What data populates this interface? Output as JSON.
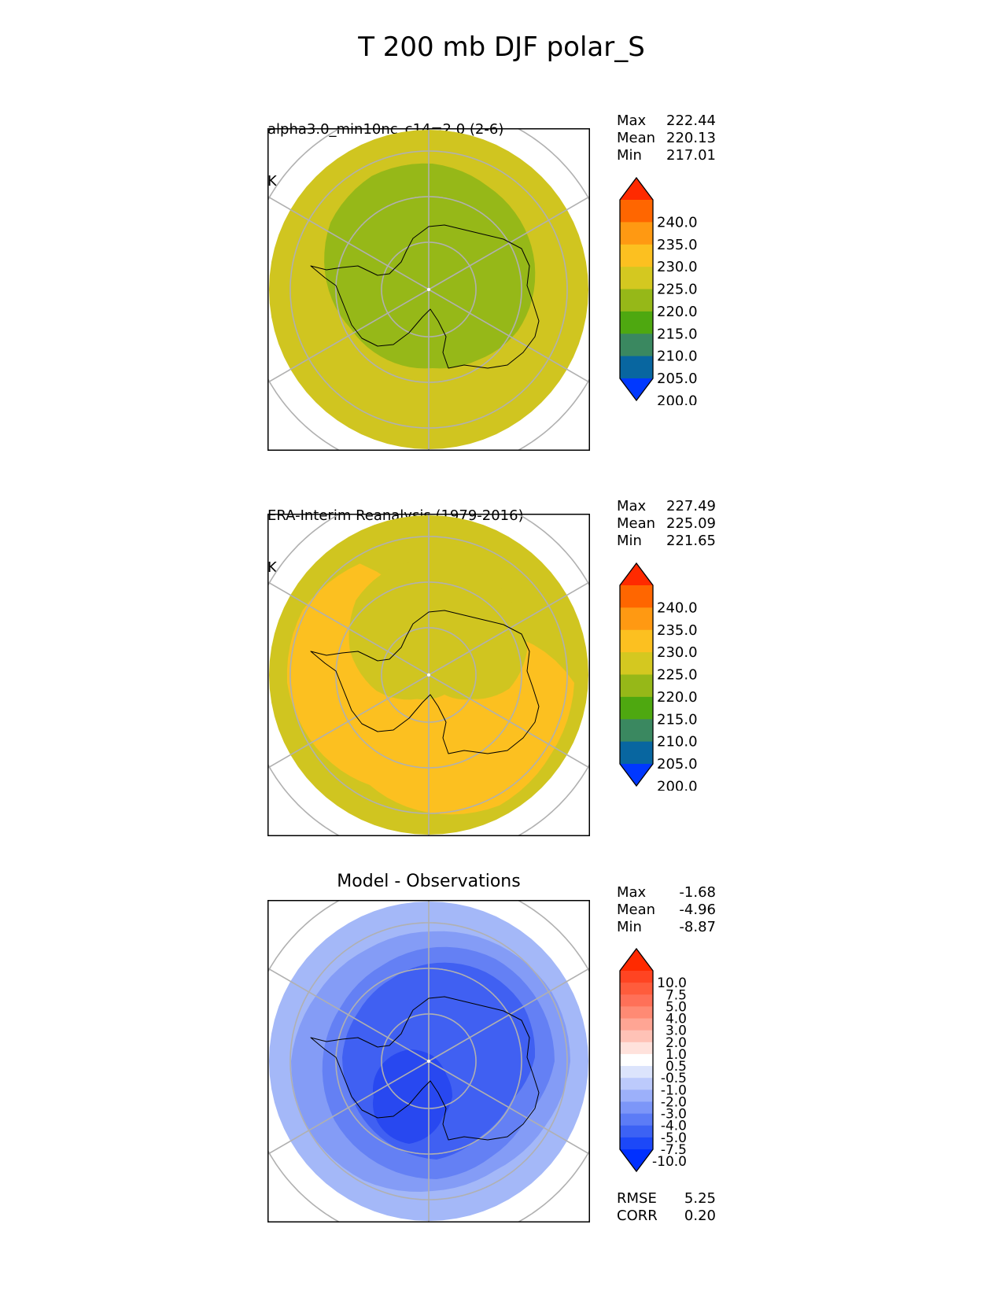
{
  "chart_data": {
    "type": "heatmap",
    "title": "T 200 mb DJF polar_S",
    "panels": [
      {
        "id": "model",
        "title_line1": "alpha3.0_min10nc_c14=2.0 (2-6)",
        "title_line2": "K",
        "stats": [
          {
            "label": "Max",
            "value": "222.44"
          },
          {
            "label": "Mean",
            "value": "220.13"
          },
          {
            "label": "Min",
            "value": "217.01"
          }
        ],
        "colorbar": {
          "ticks": [
            "240.0",
            "235.0",
            "230.0",
            "225.0",
            "220.0",
            "215.0",
            "210.0",
            "205.0",
            "200.0"
          ],
          "colors": [
            "#ff2a00",
            "#ff6600",
            "#ff9912",
            "#fcc020",
            "#d4c820",
            "#96b818",
            "#4ea810",
            "#3a8860",
            "#0866a0",
            "#0038ff"
          ]
        },
        "field_levels": [
          {
            "band": "220-225",
            "color": "#d0c520",
            "region": "outer ring"
          },
          {
            "band": "215-220",
            "color": "#96b818",
            "region": "polar cap over Antarctica"
          }
        ]
      },
      {
        "id": "obs",
        "title_line1": "ERA-Interim Reanalysis (1979-2016)",
        "title_line2": "K",
        "stats": [
          {
            "label": "Max",
            "value": "227.49"
          },
          {
            "label": "Mean",
            "value": "225.09"
          },
          {
            "label": "Min",
            "value": "221.65"
          }
        ],
        "colorbar": {
          "ticks": [
            "240.0",
            "235.0",
            "230.0",
            "225.0",
            "220.0",
            "215.0",
            "210.0",
            "205.0",
            "200.0"
          ],
          "colors": [
            "#ff2a00",
            "#ff6600",
            "#ff9912",
            "#fcc020",
            "#d4c820",
            "#96b818",
            "#4ea810",
            "#3a8860",
            "#0866a0",
            "#0038ff"
          ]
        },
        "field_levels": [
          {
            "band": "220-225",
            "color": "#d0c520",
            "region": "north and outer edge"
          },
          {
            "band": "225-230",
            "color": "#fcc020",
            "region": "southern crescent"
          }
        ]
      },
      {
        "id": "diff",
        "title_line1": "Model - Observations",
        "stats": [
          {
            "label": "Max",
            "value": "-1.68"
          },
          {
            "label": "Mean",
            "value": "-4.96"
          },
          {
            "label": "Min",
            "value": "-8.87"
          }
        ],
        "colorbar": {
          "ticks": [
            "10.0",
            "7.5",
            "5.0",
            "4.0",
            "3.0",
            "2.0",
            "1.0",
            "0.5",
            "-0.5",
            "-1.0",
            "-2.0",
            "-3.0",
            "-4.0",
            "-5.0",
            "-7.5",
            "-10.0"
          ],
          "colors": [
            "#ff2a00",
            "#ff4422",
            "#ff5c3c",
            "#ff7058",
            "#ff8a74",
            "#ffa594",
            "#ffc2b6",
            "#ffe2dc",
            "#ffffff",
            "#dce4fc",
            "#bccafc",
            "#9cb0fa",
            "#7c96f8",
            "#5c7cf6",
            "#3c62f4",
            "#1c48f8",
            "#0030ff"
          ]
        },
        "field_levels": [
          {
            "band": "-3 to -2",
            "color": "#a4b8f8",
            "region": "outer edge"
          },
          {
            "band": "-4 to -3",
            "color": "#849cf6",
            "region": "middle ring"
          },
          {
            "band": "-5 to -4",
            "color": "#6480f4",
            "region": "inner"
          },
          {
            "band": "-7.5 to -5",
            "color": "#4060f2",
            "region": "over Antarctica"
          },
          {
            "band": "-10 to -7.5",
            "color": "#2848f0",
            "region": "Ross Sea minimum"
          }
        ],
        "footer_stats": [
          {
            "label": "RMSE",
            "value": "5.25"
          },
          {
            "label": "CORR",
            "value": "0.20"
          }
        ]
      }
    ]
  }
}
